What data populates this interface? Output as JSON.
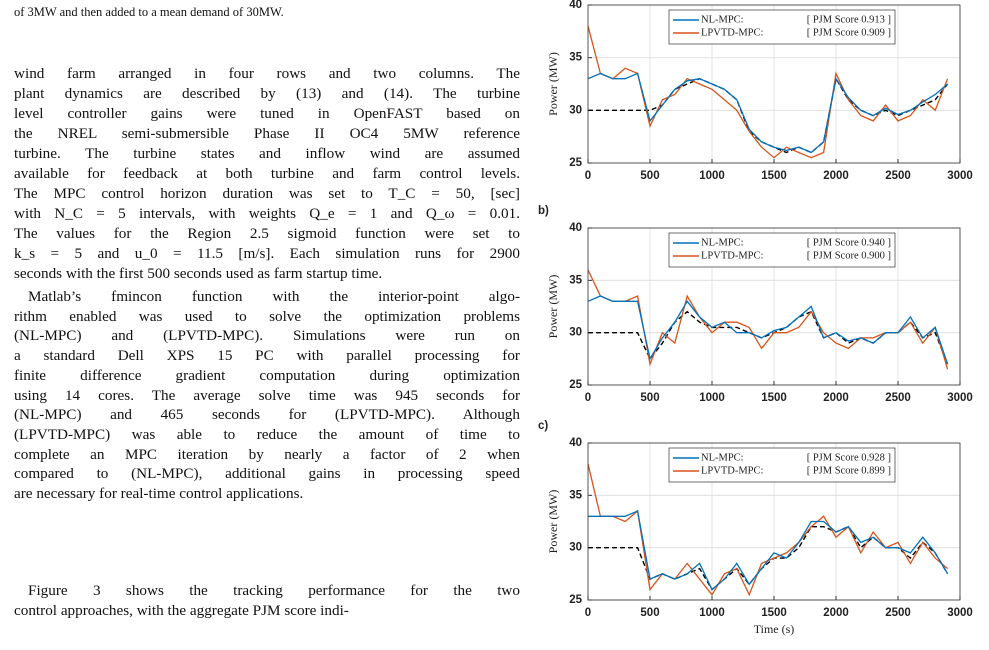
{
  "caption_fragment": "of 3MW and then added to a mean demand of 30MW.",
  "paragraphs": [
    {
      "lines": [
        "wind farm arranged in four rows and two columns. The",
        "plant dynamics are described by (13) and (14). The turbine",
        "level controller gains were tuned in OpenFAST based on",
        "the NREL semi-submersible Phase II OC4 5MW reference",
        "turbine. The turbine states and inflow wind are assumed",
        "available for feedback at both turbine and farm control levels.",
        "The MPC control horizon duration was set to T_C = 50, [sec]",
        "with N_C = 5 intervals, with weights Q_e = 1 and Q_ω = 0.01.",
        "The values for the Region 2.5 sigmoid function were set to",
        "k_s = 5 and u_0 = 11.5 [m/s]. Each simulation runs for 2900",
        "seconds with the first 500 seconds used as farm startup time."
      ]
    },
    {
      "lines": [
        "Matlab’s fmincon function with the interior-point algo-",
        "rithm enabled was used to solve the optimization problems",
        "(NL-MPC) and (LPVTD-MPC). Simulations were run on",
        "a standard Dell XPS 15 PC with parallel processing for",
        "finite difference gradient computation during optimization",
        "using 14 cores. The average solve time was 945 seconds for",
        "(NL-MPC) and 465 seconds for (LPVTD-MPC). Although",
        "(LPVTD-MPC) was able to reduce the amount of time to",
        "complete an MPC iteration by nearly a factor of 2 when",
        "compared to (NL-MPC), additional gains in processing speed",
        "are necessary for real-time control applications."
      ]
    },
    {
      "lines": [
        "Figure 3 shows the tracking performance for the two",
        "control approaches, with the aggregate PJM score indi-"
      ]
    }
  ],
  "chart_data": [
    {
      "type": "line",
      "y_label": "Power (MW)",
      "xlim": [
        0,
        3000
      ],
      "xticks": [
        0,
        500,
        1000,
        1500,
        2000,
        2500,
        3000
      ],
      "ylim": [
        25,
        40
      ],
      "yticks": [
        25,
        30,
        35,
        40
      ],
      "grid": true,
      "x": [
        0,
        100,
        200,
        300,
        400,
        500,
        600,
        700,
        800,
        900,
        1000,
        1100,
        1200,
        1300,
        1400,
        1500,
        1600,
        1700,
        1800,
        1900,
        2000,
        2100,
        2200,
        2300,
        2400,
        2500,
        2600,
        2700,
        2800,
        2900
      ],
      "series": [
        {
          "name": "NL-MPC:",
          "legend_note": "[ PJM Score 0.913 ]",
          "color": "#0072bd",
          "values": [
            33,
            33.5,
            33,
            33,
            33.5,
            29,
            30.5,
            32,
            32.8,
            33,
            32.5,
            32,
            31,
            28.2,
            27,
            26.5,
            26.2,
            26.5,
            26,
            27,
            33,
            31.2,
            30,
            29.5,
            30.2,
            29.6,
            30,
            30.8,
            31.5,
            32.5
          ]
        },
        {
          "name": "LPVTD-MPC:",
          "legend_note": "[ PJM Score 0.909 ]",
          "color": "#d95319",
          "values": [
            38,
            33.5,
            33,
            34,
            33.5,
            28.5,
            31,
            31.5,
            33,
            32.5,
            32,
            31,
            30,
            28,
            26.5,
            25.5,
            26.5,
            26,
            25.5,
            26,
            33.5,
            31,
            29.5,
            29,
            30.5,
            29,
            29.5,
            31,
            30,
            33
          ]
        },
        {
          "color": "#000000",
          "dashed": true,
          "values": [
            30,
            30,
            30,
            30,
            30,
            30,
            30.5,
            32,
            32.5,
            33,
            32.5,
            32,
            31,
            28,
            27,
            26.5,
            26,
            26.5,
            26,
            27,
            33,
            31,
            30,
            29.5,
            30,
            29.5,
            30,
            30.5,
            31,
            32.5
          ]
        }
      ]
    },
    {
      "type": "line",
      "panel_label": "b)",
      "y_label": "Power (MW)",
      "xlim": [
        0,
        3000
      ],
      "xticks": [
        0,
        500,
        1000,
        1500,
        2000,
        2500,
        3000
      ],
      "ylim": [
        25,
        40
      ],
      "yticks": [
        25,
        30,
        35,
        40
      ],
      "grid": true,
      "x": [
        0,
        100,
        200,
        300,
        400,
        500,
        600,
        700,
        800,
        900,
        1000,
        1100,
        1200,
        1300,
        1400,
        1500,
        1600,
        1700,
        1800,
        1900,
        2000,
        2100,
        2200,
        2300,
        2400,
        2500,
        2600,
        2700,
        2800,
        2900
      ],
      "series": [
        {
          "name": "NL-MPC:",
          "legend_note": "[ PJM Score 0.940 ]",
          "color": "#0072bd",
          "values": [
            33,
            33.5,
            33,
            33,
            33,
            27.5,
            29.5,
            31,
            33,
            31.5,
            30.5,
            31,
            30,
            30,
            29.5,
            30.2,
            30.5,
            31.5,
            32.5,
            29.5,
            30,
            29.2,
            29.5,
            29,
            30,
            30,
            31.5,
            29.5,
            30.5,
            27
          ]
        },
        {
          "name": "LPVTD-MPC:",
          "legend_note": "[ PJM Score 0.900 ]",
          "color": "#d95319",
          "values": [
            36,
            33.5,
            33,
            33,
            33.5,
            27,
            30,
            29,
            33.5,
            31.5,
            30,
            31,
            31,
            30.5,
            28.5,
            30,
            30,
            30.5,
            32,
            30,
            29,
            28.5,
            29.5,
            29.5,
            30,
            30,
            31,
            29,
            30.5,
            26.5
          ]
        },
        {
          "color": "#000000",
          "dashed": true,
          "values": [
            30,
            30,
            30,
            30,
            30,
            27.5,
            29,
            31,
            32,
            31,
            30.5,
            30.5,
            30.5,
            30,
            29.5,
            30,
            30.5,
            31.5,
            32,
            29.5,
            30,
            29,
            29.5,
            29,
            30,
            30,
            31,
            29.5,
            30,
            27
          ]
        }
      ]
    },
    {
      "type": "line",
      "panel_label": "c)",
      "y_label": "Power (MW)",
      "x_label": "Time (s)",
      "xlim": [
        0,
        3000
      ],
      "xticks": [
        0,
        500,
        1000,
        1500,
        2000,
        2500,
        3000
      ],
      "ylim": [
        25,
        40
      ],
      "yticks": [
        25,
        30,
        35,
        40
      ],
      "grid": true,
      "x": [
        0,
        100,
        200,
        300,
        400,
        500,
        600,
        700,
        800,
        900,
        1000,
        1100,
        1200,
        1300,
        1400,
        1500,
        1600,
        1700,
        1800,
        1900,
        2000,
        2100,
        2200,
        2300,
        2400,
        2500,
        2600,
        2700,
        2800,
        2900
      ],
      "series": [
        {
          "name": "NL-MPC:",
          "legend_note": "[ PJM Score 0.928 ]",
          "color": "#0072bd",
          "values": [
            33,
            33,
            33,
            33,
            33.5,
            27,
            27.5,
            27,
            27.5,
            28.5,
            26,
            27,
            28.5,
            26.5,
            28,
            29.5,
            29,
            30.5,
            32.5,
            32.5,
            31.5,
            32,
            30.5,
            31,
            30,
            30,
            29.5,
            31,
            29.5,
            27.5
          ]
        },
        {
          "name": "LPVTD-MPC:",
          "legend_note": "[ PJM Score 0.899 ]",
          "color": "#d95319",
          "values": [
            38,
            33,
            33,
            32.5,
            33.5,
            26,
            27.5,
            27,
            28.5,
            27,
            25.5,
            27.5,
            28,
            25.5,
            28.5,
            29,
            29.5,
            30.5,
            32,
            33,
            31,
            32,
            29.5,
            31.5,
            30,
            30.5,
            28.5,
            30.5,
            29,
            28
          ]
        },
        {
          "color": "#000000",
          "dashed": true,
          "values": [
            30,
            30,
            30,
            30,
            30,
            27,
            27.5,
            27,
            27.5,
            28,
            26,
            27,
            28,
            26.5,
            28,
            29,
            29,
            30,
            32,
            32,
            31.5,
            32,
            30,
            31,
            30,
            30,
            29,
            30.5,
            29.5,
            27.5
          ]
        }
      ]
    }
  ]
}
